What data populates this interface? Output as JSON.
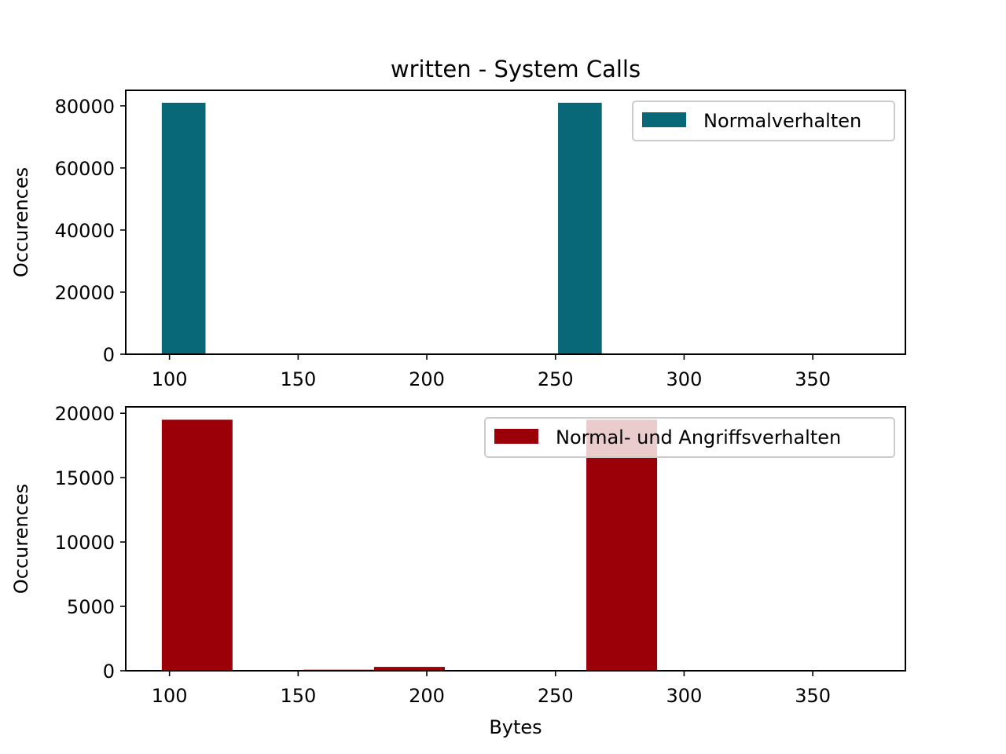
{
  "chart_data": [
    {
      "type": "bar",
      "title": "written - System Calls",
      "xlabel": "",
      "ylabel": "Occurences",
      "xlim": [
        83,
        386
      ],
      "ylim": [
        0,
        85000
      ],
      "xticks": [
        100,
        150,
        200,
        250,
        300,
        350
      ],
      "yticks": [
        0,
        20000,
        40000,
        60000,
        80000
      ],
      "grid": false,
      "legend_position": "top-right",
      "series": [
        {
          "name": "Normalverhalten",
          "color": "#096877",
          "bins": [
            {
              "x0": 97,
              "x1": 114,
              "value": 81000
            },
            {
              "x0": 251,
              "x1": 268,
              "value": 81000
            }
          ]
        }
      ]
    },
    {
      "type": "bar",
      "title": "",
      "xlabel": "Bytes",
      "ylabel": "Occurences",
      "xlim": [
        83,
        386
      ],
      "ylim": [
        0,
        20500
      ],
      "xticks": [
        100,
        150,
        200,
        250,
        300,
        350
      ],
      "yticks": [
        0,
        5000,
        10000,
        15000,
        20000
      ],
      "grid": false,
      "legend_position": "top-right",
      "series": [
        {
          "name": "Normal- und Angriffsverhalten",
          "color": "#9b0009",
          "bins": [
            {
              "x0": 97,
              "x1": 124.5,
              "value": 19500
            },
            {
              "x0": 152,
              "x1": 179.5,
              "value": 80
            },
            {
              "x0": 179.5,
              "x1": 207,
              "value": 300
            },
            {
              "x0": 262,
              "x1": 289.5,
              "value": 19500
            },
            {
              "x0": 344.5,
              "x1": 372,
              "value": 60
            }
          ]
        }
      ]
    }
  ]
}
